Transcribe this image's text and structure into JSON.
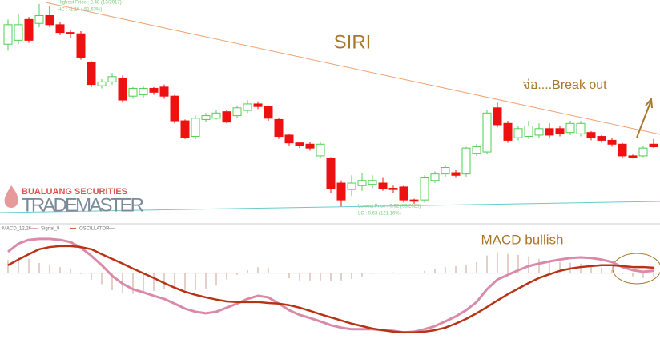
{
  "logo": {
    "company": "BUALUANG SECURITIES",
    "product": "TRADEMASTER"
  },
  "chart_data": [
    {
      "type": "candlestick",
      "title": "SIRI",
      "ylim": [
        0.86,
        2.51
      ],
      "up_color": "#4fcf4f",
      "down_color": "#ee1111",
      "annotations": {
        "break_out": "จ่อ....Break out",
        "highest_price": "Highest Price : 2.48 (13/2017)",
        "highest_change": "HC : -1.10 (-51.63%)",
        "lowest_price": "Lowest Price : 0.92 (03/2020)",
        "lowest_change": "LC : 0.63 (121.16%)"
      },
      "open": [
        2.17,
        2.2,
        2.36,
        2.33,
        2.39,
        2.32,
        2.26,
        2.25,
        2.03,
        1.85,
        1.88,
        1.91,
        1.77,
        1.78,
        1.83,
        1.84,
        1.77,
        1.58,
        1.46,
        1.59,
        1.6,
        1.65,
        1.62,
        1.66,
        1.71,
        1.69,
        1.59,
        1.47,
        1.41,
        1.4,
        1.31,
        1.29,
        1.1,
        1.05,
        1.08,
        1.09,
        1.1,
        1.06,
        1.07,
        0.97,
        0.97,
        1.12,
        1.17,
        1.18,
        1.17,
        1.33,
        1.34,
        1.68,
        1.56,
        1.45,
        1.46,
        1.47,
        1.52,
        1.52,
        1.49,
        1.48,
        1.49,
        1.46,
        1.43,
        1.4,
        1.31,
        1.31,
        1.4
      ],
      "high": [
        2.36,
        2.4,
        2.38,
        2.48,
        2.46,
        2.34,
        2.28,
        2.27,
        2.04,
        1.9,
        1.95,
        1.93,
        1.84,
        1.85,
        1.84,
        1.86,
        1.78,
        1.59,
        1.62,
        1.64,
        1.66,
        1.66,
        1.7,
        1.74,
        1.73,
        1.7,
        1.6,
        1.48,
        1.42,
        1.42,
        1.42,
        1.3,
        1.12,
        1.16,
        1.18,
        1.16,
        1.14,
        1.08,
        1.08,
        0.98,
        1.16,
        1.19,
        1.24,
        1.2,
        1.38,
        1.4,
        1.66,
        1.72,
        1.58,
        1.54,
        1.58,
        1.56,
        1.56,
        1.54,
        1.58,
        1.58,
        1.5,
        1.47,
        1.45,
        1.41,
        1.32,
        1.39,
        1.44
      ],
      "low": [
        2.12,
        2.17,
        2.18,
        2.3,
        2.3,
        2.24,
        2.22,
        2.05,
        1.84,
        1.83,
        1.86,
        1.72,
        1.75,
        1.76,
        1.78,
        1.75,
        1.56,
        1.44,
        1.44,
        1.57,
        1.59,
        1.56,
        1.6,
        1.64,
        1.67,
        1.58,
        1.44,
        1.39,
        1.37,
        1.35,
        1.29,
        1.02,
        0.92,
        1.0,
        1.04,
        1.06,
        1.04,
        1.02,
        0.95,
        0.94,
        0.95,
        1.1,
        1.15,
        1.14,
        1.15,
        1.31,
        1.32,
        1.53,
        1.41,
        1.43,
        1.44,
        1.45,
        1.45,
        1.46,
        1.47,
        1.46,
        1.43,
        1.41,
        1.38,
        1.29,
        1.29,
        1.3,
        1.37
      ],
      "close": [
        2.32,
        2.32,
        2.2,
        2.39,
        2.32,
        2.26,
        2.25,
        2.07,
        1.86,
        1.88,
        1.92,
        1.74,
        1.83,
        1.83,
        1.8,
        1.77,
        1.58,
        1.45,
        1.6,
        1.62,
        1.64,
        1.57,
        1.68,
        1.71,
        1.69,
        1.6,
        1.46,
        1.41,
        1.39,
        1.37,
        1.4,
        1.06,
        0.97,
        1.1,
        1.12,
        1.12,
        1.06,
        1.05,
        0.97,
        0.96,
        1.14,
        1.17,
        1.22,
        1.16,
        1.37,
        1.38,
        1.64,
        1.55,
        1.43,
        1.52,
        1.54,
        1.52,
        1.47,
        1.48,
        1.56,
        1.56,
        1.45,
        1.43,
        1.4,
        1.31,
        1.3,
        1.37,
        1.38
      ]
    },
    {
      "type": "line",
      "title": "MACD bullish",
      "ylim": [
        -0.2,
        0.12
      ],
      "series": [
        {
          "name": "MACD_12,26",
          "color": "#d98aa8",
          "values": [
            0.069,
            0.095,
            0.107,
            0.11,
            0.11,
            0.107,
            0.1,
            0.082,
            0.056,
            0.026,
            -0.008,
            -0.033,
            -0.051,
            -0.061,
            -0.072,
            -0.082,
            -0.097,
            -0.113,
            -0.123,
            -0.128,
            -0.123,
            -0.11,
            -0.097,
            -0.082,
            -0.072,
            -0.077,
            -0.097,
            -0.118,
            -0.133,
            -0.143,
            -0.154,
            -0.166,
            -0.174,
            -0.179,
            -0.179,
            -0.179,
            -0.182,
            -0.184,
            -0.189,
            -0.187,
            -0.179,
            -0.169,
            -0.154,
            -0.138,
            -0.118,
            -0.092,
            -0.051,
            -0.02,
            -0.005,
            0.01,
            0.023,
            0.031,
            0.038,
            0.044,
            0.049,
            0.051,
            0.049,
            0.044,
            0.036,
            0.02,
            0.01,
            0.005,
            0.008
          ]
        },
        {
          "name": "Signal_9",
          "color": "#b83214",
          "values": [
            0.026,
            0.044,
            0.061,
            0.077,
            0.084,
            0.087,
            0.087,
            0.084,
            0.077,
            0.061,
            0.046,
            0.031,
            0.015,
            0,
            -0.015,
            -0.031,
            -0.046,
            -0.059,
            -0.069,
            -0.077,
            -0.084,
            -0.09,
            -0.092,
            -0.092,
            -0.092,
            -0.095,
            -0.097,
            -0.102,
            -0.11,
            -0.12,
            -0.131,
            -0.141,
            -0.151,
            -0.161,
            -0.169,
            -0.177,
            -0.182,
            -0.187,
            -0.189,
            -0.189,
            -0.187,
            -0.182,
            -0.174,
            -0.161,
            -0.146,
            -0.128,
            -0.108,
            -0.087,
            -0.067,
            -0.049,
            -0.031,
            -0.015,
            -0.003,
            0.008,
            0.015,
            0.02,
            0.023,
            0.026,
            0.026,
            0.023,
            0.02,
            0.02,
            0.018
          ]
        },
        {
          "name": "OSCILLATOR",
          "type": "bar",
          "color": "#c9a090",
          "values": [
            0.043,
            0.051,
            0.046,
            0.033,
            0.026,
            0.02,
            0.013,
            -0.002,
            -0.021,
            -0.035,
            -0.054,
            -0.064,
            -0.066,
            -0.061,
            -0.057,
            -0.051,
            -0.051,
            -0.054,
            -0.054,
            -0.051,
            -0.039,
            -0.02,
            -0.005,
            0.01,
            0.02,
            0.018,
            0,
            -0.016,
            -0.023,
            -0.023,
            -0.023,
            -0.025,
            -0.023,
            -0.018,
            -0.01,
            -0.002,
            0,
            0.003,
            0,
            0.002,
            0.008,
            0.013,
            0.02,
            0.023,
            0.028,
            0.036,
            0.057,
            0.067,
            0.062,
            0.059,
            0.054,
            0.046,
            0.041,
            0.036,
            0.034,
            0.031,
            0.026,
            0.018,
            0.01,
            -0.003,
            -0.01,
            -0.015,
            -0.01
          ]
        }
      ]
    }
  ]
}
